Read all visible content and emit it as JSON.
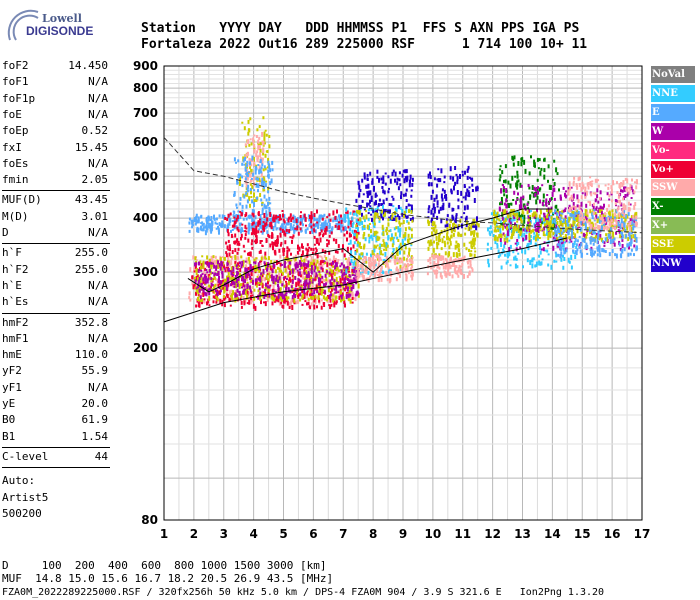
{
  "logo": {
    "line1": "Lowell",
    "line2": "DIGISONDE"
  },
  "header": {
    "cols": [
      "Station",
      "YYYY",
      "DAY",
      "DDD",
      "HHMMSS",
      "P1",
      "FFS",
      "S",
      "AXN",
      "PPS",
      "IGA",
      "PS"
    ],
    "vals": [
      "Fortaleza",
      "2022",
      "Out16",
      "289",
      "225000",
      "RSF",
      "",
      "1",
      "714",
      "100",
      "10+",
      "11"
    ],
    "row1": "Station   YYYY DAY   DDD HHMMSS P1  FFS S AXN PPS IGA PS",
    "row2": "Fortaleza 2022 Out16 289 225000 RSF      1 714 100 10+ 11"
  },
  "params": {
    "group1": [
      {
        "name": "foF2",
        "value": "14.450"
      },
      {
        "name": "foF1",
        "value": "N/A"
      },
      {
        "name": "foF1p",
        "value": "N/A"
      },
      {
        "name": "foE",
        "value": "N/A"
      },
      {
        "name": "foEp",
        "value": "0.52"
      },
      {
        "name": "fxI",
        "value": "15.45"
      },
      {
        "name": "foEs",
        "value": "N/A"
      },
      {
        "name": "fmin",
        "value": "2.05"
      }
    ],
    "group2": [
      {
        "name": "MUF(D)",
        "value": "43.45"
      },
      {
        "name": "M(D)",
        "value": "3.01"
      },
      {
        "name": "D",
        "value": "N/A"
      }
    ],
    "group3": [
      {
        "name": "h`F",
        "value": "255.0"
      },
      {
        "name": "h`F2",
        "value": "255.0"
      },
      {
        "name": "h`E",
        "value": "N/A"
      },
      {
        "name": "h`Es",
        "value": "N/A"
      }
    ],
    "group4": [
      {
        "name": "hmF2",
        "value": "352.8"
      },
      {
        "name": "hmF1",
        "value": "N/A"
      },
      {
        "name": "hmE",
        "value": "110.0"
      },
      {
        "name": "yF2",
        "value": "55.9"
      },
      {
        "name": "yF1",
        "value": "N/A"
      },
      {
        "name": "yE",
        "value": "20.0"
      },
      {
        "name": "B0",
        "value": "61.9"
      },
      {
        "name": "B1",
        "value": "1.54"
      }
    ],
    "group5": [
      {
        "name": "C-level",
        "value": "44"
      }
    ],
    "auto": [
      "Auto:",
      "Artist5",
      "500200"
    ]
  },
  "legend": [
    {
      "label": "NoVal",
      "color": "#7f7f7f"
    },
    {
      "label": "NNE",
      "color": "#33ccff"
    },
    {
      "label": "E",
      "color": "#55aaff"
    },
    {
      "label": "W",
      "color": "#aa00aa"
    },
    {
      "label": "Vo-",
      "color": "#ff2a7f"
    },
    {
      "label": "Vo+",
      "color": "#ee0033"
    },
    {
      "label": "SSW",
      "color": "#ffaaaa"
    },
    {
      "label": "X-",
      "color": "#007f00"
    },
    {
      "label": "X+",
      "color": "#88bb55"
    },
    {
      "label": "SSE",
      "color": "#cccc00"
    },
    {
      "label": "NNW",
      "color": "#2200cc"
    }
  ],
  "chart_data": {
    "type": "scatter",
    "title": "",
    "xlabel": "",
    "ylabel": "",
    "xlim": [
      1,
      17
    ],
    "ylim": [
      80,
      900
    ],
    "y_scale": "log",
    "grid": true,
    "x_ticks": [
      1,
      2,
      3,
      4,
      5,
      6,
      7,
      8,
      9,
      10,
      11,
      12,
      13,
      14,
      15,
      16,
      17
    ],
    "y_ticks": [
      80,
      200,
      300,
      400,
      500,
      600,
      700,
      800,
      900
    ],
    "legend_position": "right",
    "clusters": [
      {
        "name": "SSE",
        "color": "#cccc00",
        "x": [
          3.5,
          4.5
        ],
        "y": [
          430,
          690
        ]
      },
      {
        "name": "SSW",
        "color": "#ffaaaa",
        "x": [
          3.7,
          4.3
        ],
        "y": [
          480,
          640
        ]
      },
      {
        "name": "E",
        "color": "#55aaff",
        "x": [
          3.3,
          4.6
        ],
        "y": [
          415,
          560
        ]
      },
      {
        "name": "E",
        "color": "#55aaff",
        "x": [
          1.8,
          7.2
        ],
        "y": [
          375,
          410
        ]
      },
      {
        "name": "SSW",
        "color": "#ffaaaa",
        "x": [
          1.8,
          7.4
        ],
        "y": [
          255,
          330
        ]
      },
      {
        "name": "Vo+",
        "color": "#ee0033",
        "x": [
          1.9,
          7.3
        ],
        "y": [
          250,
          320
        ]
      },
      {
        "name": "SSE",
        "color": "#cccc00",
        "x": [
          2.0,
          7.5
        ],
        "y": [
          260,
          330
        ]
      },
      {
        "name": "W",
        "color": "#aa00aa",
        "x": [
          2.0,
          7.5
        ],
        "y": [
          265,
          320
        ]
      },
      {
        "name": "Vo+",
        "color": "#ee0033",
        "x": [
          3.0,
          7.5
        ],
        "y": [
          330,
          420
        ]
      },
      {
        "name": "NNE",
        "color": "#33ccff",
        "x": [
          7.0,
          9.3
        ],
        "y": [
          300,
          430
        ]
      },
      {
        "name": "NNW",
        "color": "#2200cc",
        "x": [
          7.4,
          9.3
        ],
        "y": [
          400,
          520
        ]
      },
      {
        "name": "SSE",
        "color": "#cccc00",
        "x": [
          7.4,
          9.3
        ],
        "y": [
          310,
          420
        ]
      },
      {
        "name": "SSW",
        "color": "#ffaaaa",
        "x": [
          7.4,
          9.3
        ],
        "y": [
          290,
          330
        ]
      },
      {
        "name": "NNW",
        "color": "#2200cc",
        "x": [
          9.8,
          11.5
        ],
        "y": [
          380,
          530
        ]
      },
      {
        "name": "SSE",
        "color": "#cccc00",
        "x": [
          9.8,
          11.5
        ],
        "y": [
          330,
          400
        ]
      },
      {
        "name": "SSW",
        "color": "#ffaaaa",
        "x": [
          9.8,
          11.3
        ],
        "y": [
          295,
          330
        ]
      },
      {
        "name": "X-",
        "color": "#007f00",
        "x": [
          12.2,
          14.2
        ],
        "y": [
          380,
          560
        ]
      },
      {
        "name": "NNE",
        "color": "#33ccff",
        "x": [
          11.8,
          14.8
        ],
        "y": [
          310,
          420
        ]
      },
      {
        "name": "W",
        "color": "#aa00aa",
        "x": [
          12.2,
          16.8
        ],
        "y": [
          340,
          480
        ]
      },
      {
        "name": "SSE",
        "color": "#cccc00",
        "x": [
          12.0,
          16.8
        ],
        "y": [
          360,
          420
        ]
      },
      {
        "name": "E",
        "color": "#55aaff",
        "x": [
          14.0,
          16.8
        ],
        "y": [
          330,
          420
        ]
      },
      {
        "name": "SSW",
        "color": "#ffaaaa",
        "x": [
          14.5,
          16.8
        ],
        "y": [
          380,
          500
        ]
      }
    ],
    "lines": [
      {
        "name": "dashed",
        "style": "dashed",
        "x": [
          1,
          2,
          3,
          4,
          5,
          6,
          7,
          8,
          9,
          10,
          11,
          12,
          13,
          14,
          15,
          16,
          17
        ],
        "y": [
          615,
          515,
          500,
          480,
          460,
          445,
          432,
          420,
          408,
          400,
          393,
          390,
          385,
          380,
          376,
          373,
          370
        ]
      },
      {
        "name": "lower",
        "style": "solid",
        "x": [
          1,
          3,
          5,
          7,
          9,
          11,
          13,
          14.5
        ],
        "y": [
          230,
          255,
          270,
          280,
          300,
          320,
          340,
          360
        ]
      },
      {
        "name": "upper",
        "style": "solid",
        "x": [
          1.8,
          2.5,
          3,
          4,
          5,
          6,
          7,
          8,
          9,
          10,
          11,
          12,
          13,
          14
        ],
        "y": [
          290,
          270,
          280,
          305,
          320,
          330,
          340,
          300,
          345,
          365,
          385,
          400,
          420,
          420
        ]
      }
    ]
  },
  "footer": {
    "line1": "D     100  200  400  600  800 1000 1500 3000 [km]",
    "line2": "MUF  14.8 15.0 15.6 16.7 18.2 20.5 26.9 43.5 [MHz]",
    "line3": "FZA0M_2022289225000.RSF / 320fx256h 50 kHz 5.0 km / DPS-4 FZA0M 904 / 3.9 S 321.6 E   Ion2Png 1.3.20"
  }
}
